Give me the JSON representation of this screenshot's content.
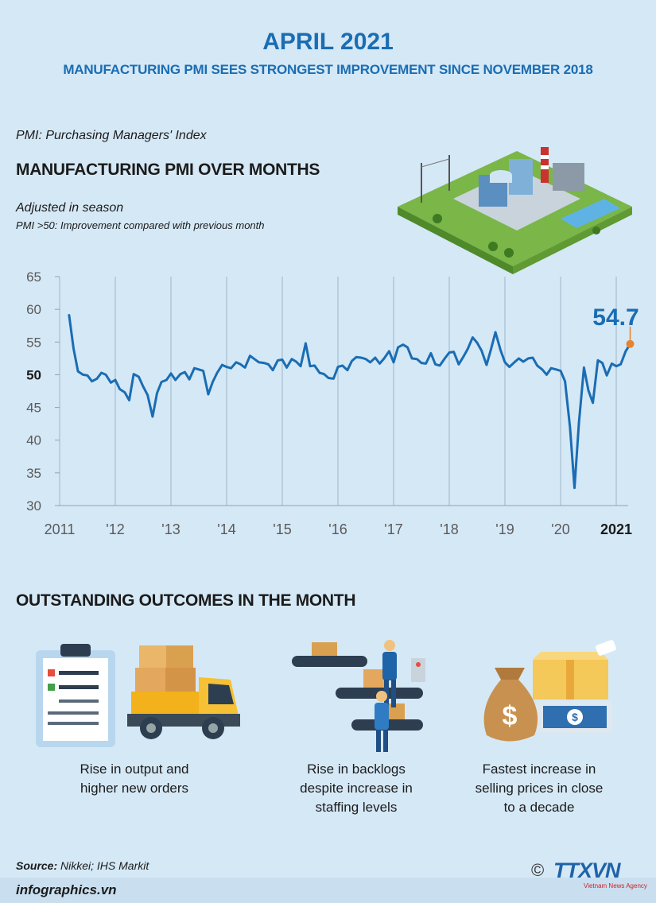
{
  "header": {
    "title": "APRIL 2021",
    "subtitle": "MANUFACTURING PMI SEES STRONGEST IMPROVEMENT SINCE NOVEMBER 2018"
  },
  "intro": {
    "definition": "PMI: Purchasing Managers' Index",
    "chart_heading": "MANUFACTURING PMI OVER MONTHS",
    "adjustment": "Adjusted in season",
    "note": "PMI >50: Improvement compared with previous month"
  },
  "chart_data": {
    "type": "line",
    "title": "MANUFACTURING PMI OVER MONTHS",
    "xlabel": "",
    "ylabel": "",
    "ylim": [
      30,
      65
    ],
    "yticks": [
      30,
      35,
      40,
      45,
      50,
      55,
      60,
      65
    ],
    "x_tick_labels": [
      "2011",
      "'12",
      "'13",
      "'14",
      "'15",
      "'16",
      "'17",
      "'18",
      "'19",
      "'20",
      "2021"
    ],
    "x_tick_years": [
      2011,
      2012,
      2013,
      2014,
      2015,
      2016,
      2017,
      2018,
      2019,
      2020,
      2021
    ],
    "grid": "vertical",
    "line_color": "#1a6db3",
    "highlight_color": "#e8832a",
    "latest_label": "54.7",
    "series": [
      {
        "name": "Manufacturing PMI",
        "points": [
          [
            2011.17,
            59.1
          ],
          [
            2011.25,
            54.0
          ],
          [
            2011.33,
            50.5
          ],
          [
            2011.42,
            50.0
          ],
          [
            2011.5,
            49.9
          ],
          [
            2011.58,
            49.0
          ],
          [
            2011.67,
            49.4
          ],
          [
            2011.75,
            50.3
          ],
          [
            2011.83,
            50.0
          ],
          [
            2011.92,
            48.8
          ],
          [
            2012.0,
            49.2
          ],
          [
            2012.08,
            47.8
          ],
          [
            2012.17,
            47.3
          ],
          [
            2012.25,
            46.1
          ],
          [
            2012.33,
            50.1
          ],
          [
            2012.42,
            49.7
          ],
          [
            2012.5,
            48.2
          ],
          [
            2012.58,
            46.9
          ],
          [
            2012.67,
            43.6
          ],
          [
            2012.75,
            47.2
          ],
          [
            2012.83,
            48.9
          ],
          [
            2012.92,
            49.2
          ],
          [
            2013.0,
            50.2
          ],
          [
            2013.08,
            49.2
          ],
          [
            2013.17,
            50.1
          ],
          [
            2013.25,
            50.4
          ],
          [
            2013.33,
            49.3
          ],
          [
            2013.42,
            51.0
          ],
          [
            2013.5,
            50.8
          ],
          [
            2013.58,
            50.6
          ],
          [
            2013.67,
            47.0
          ],
          [
            2013.75,
            48.9
          ],
          [
            2013.83,
            50.3
          ],
          [
            2013.92,
            51.5
          ],
          [
            2014.0,
            51.2
          ],
          [
            2014.08,
            51.0
          ],
          [
            2014.17,
            51.9
          ],
          [
            2014.25,
            51.6
          ],
          [
            2014.33,
            51.1
          ],
          [
            2014.42,
            52.9
          ],
          [
            2014.5,
            52.4
          ],
          [
            2014.58,
            51.9
          ],
          [
            2014.67,
            51.8
          ],
          [
            2014.75,
            51.6
          ],
          [
            2014.83,
            50.7
          ],
          [
            2014.92,
            52.2
          ],
          [
            2015.0,
            52.3
          ],
          [
            2015.08,
            51.1
          ],
          [
            2015.17,
            52.4
          ],
          [
            2015.25,
            52.0
          ],
          [
            2015.33,
            51.3
          ],
          [
            2015.42,
            54.8
          ],
          [
            2015.5,
            51.3
          ],
          [
            2015.58,
            51.4
          ],
          [
            2015.67,
            50.3
          ],
          [
            2015.75,
            50.1
          ],
          [
            2015.83,
            49.5
          ],
          [
            2015.92,
            49.4
          ],
          [
            2016.0,
            51.2
          ],
          [
            2016.08,
            51.4
          ],
          [
            2016.17,
            50.7
          ],
          [
            2016.25,
            52.1
          ],
          [
            2016.33,
            52.7
          ],
          [
            2016.42,
            52.6
          ],
          [
            2016.5,
            52.4
          ],
          [
            2016.58,
            51.9
          ],
          [
            2016.67,
            52.6
          ],
          [
            2016.75,
            51.7
          ],
          [
            2016.83,
            52.5
          ],
          [
            2016.92,
            53.6
          ],
          [
            2017.0,
            51.9
          ],
          [
            2017.08,
            54.2
          ],
          [
            2017.17,
            54.6
          ],
          [
            2017.25,
            54.2
          ],
          [
            2017.33,
            52.5
          ],
          [
            2017.42,
            52.4
          ],
          [
            2017.5,
            51.8
          ],
          [
            2017.58,
            51.7
          ],
          [
            2017.67,
            53.3
          ],
          [
            2017.75,
            51.6
          ],
          [
            2017.83,
            51.4
          ],
          [
            2017.92,
            52.5
          ],
          [
            2018.0,
            53.4
          ],
          [
            2018.08,
            53.5
          ],
          [
            2018.17,
            51.6
          ],
          [
            2018.25,
            52.7
          ],
          [
            2018.33,
            53.9
          ],
          [
            2018.42,
            55.7
          ],
          [
            2018.5,
            54.9
          ],
          [
            2018.58,
            53.7
          ],
          [
            2018.67,
            51.5
          ],
          [
            2018.75,
            53.9
          ],
          [
            2018.83,
            56.5
          ],
          [
            2018.92,
            53.8
          ],
          [
            2019.0,
            51.9
          ],
          [
            2019.08,
            51.2
          ],
          [
            2019.17,
            51.9
          ],
          [
            2019.25,
            52.5
          ],
          [
            2019.33,
            52.0
          ],
          [
            2019.42,
            52.5
          ],
          [
            2019.5,
            52.6
          ],
          [
            2019.58,
            51.4
          ],
          [
            2019.67,
            50.8
          ],
          [
            2019.75,
            50.0
          ],
          [
            2019.83,
            51.0
          ],
          [
            2019.92,
            50.8
          ],
          [
            2020.0,
            50.6
          ],
          [
            2020.08,
            49.0
          ],
          [
            2020.17,
            41.9
          ],
          [
            2020.25,
            32.7
          ],
          [
            2020.33,
            42.7
          ],
          [
            2020.42,
            51.1
          ],
          [
            2020.5,
            47.6
          ],
          [
            2020.58,
            45.7
          ],
          [
            2020.67,
            52.2
          ],
          [
            2020.75,
            51.8
          ],
          [
            2020.83,
            49.9
          ],
          [
            2020.92,
            51.7
          ],
          [
            2021.0,
            51.3
          ],
          [
            2021.08,
            51.6
          ],
          [
            2021.17,
            53.6
          ],
          [
            2021.25,
            54.7
          ]
        ]
      }
    ]
  },
  "outcomes": {
    "heading": "OUTSTANDING OUTCOMES IN THE MONTH",
    "items": [
      {
        "caption_lines": [
          "Rise in output and",
          "higher new orders"
        ]
      },
      {
        "caption_lines": [
          "Rise in backlogs",
          "despite increase in",
          "staffing levels"
        ]
      },
      {
        "caption_lines": [
          "Fastest increase in",
          "selling prices in close",
          "to a decade"
        ]
      }
    ]
  },
  "footer": {
    "source_label": "Source:",
    "source_text": " Nikkei; IHS Markit",
    "site": "infographics.vn",
    "copyright": "©",
    "agency_logo": "TTXVN",
    "agency_name": "Vietnam News Agency"
  }
}
